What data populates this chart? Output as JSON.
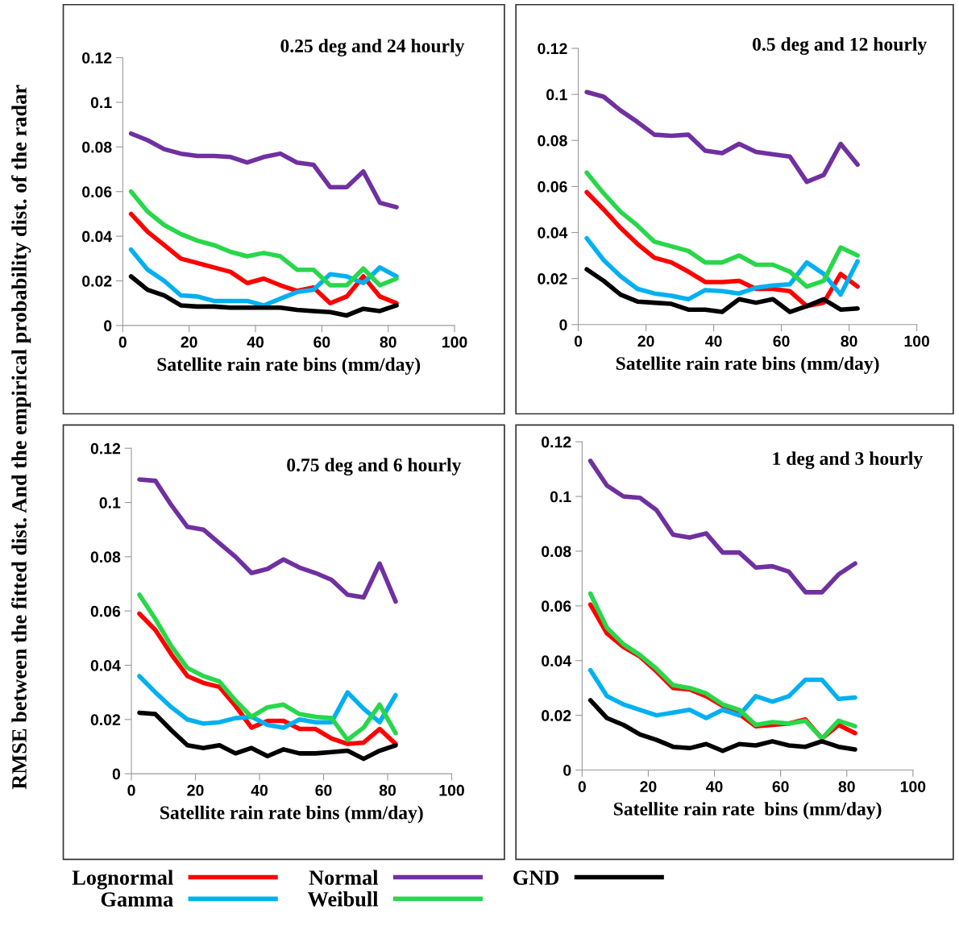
{
  "chart_data": [
    {
      "type": "line",
      "title": "0.25 deg and 24 hourly",
      "xlabel": "Satellite rain rate bins (mm/day)",
      "ylabel": "RMSE between the fitted dist. And the empirical probability dist. of the radar",
      "x": [
        2.5,
        7.5,
        12.5,
        17.5,
        22.5,
        27.5,
        32.5,
        37.5,
        42.5,
        47.5,
        52.5,
        57.5,
        62.5,
        67.5,
        72.5,
        77.5,
        82.5
      ],
      "xlim": [
        0,
        100
      ],
      "xticks": [
        0,
        20,
        40,
        60,
        80,
        100
      ],
      "ylim": [
        0,
        0.12
      ],
      "yticks": [
        0,
        0.02,
        0.04,
        0.06,
        0.08,
        0.1,
        0.12
      ],
      "grid": false,
      "legend": "bottom",
      "series": [
        {
          "name": "Lognormal",
          "color": "#ff0000",
          "values": [
            0.05,
            0.042,
            0.036,
            0.03,
            0.028,
            0.026,
            0.024,
            0.019,
            0.021,
            0.018,
            0.0155,
            0.017,
            0.01,
            0.013,
            0.022,
            0.013,
            0.01
          ]
        },
        {
          "name": "Gamma",
          "color": "#00b0f0",
          "values": [
            0.034,
            0.025,
            0.02,
            0.0135,
            0.013,
            0.011,
            0.011,
            0.011,
            0.009,
            0.012,
            0.015,
            0.016,
            0.023,
            0.022,
            0.019,
            0.026,
            0.022
          ]
        },
        {
          "name": "Normal",
          "color": "#7030a0",
          "values": [
            0.086,
            0.083,
            0.079,
            0.077,
            0.076,
            0.076,
            0.0755,
            0.073,
            0.0755,
            0.077,
            0.073,
            0.072,
            0.062,
            0.062,
            0.069,
            0.055,
            0.053
          ]
        },
        {
          "name": "Weibull",
          "color": "#28d74a",
          "values": [
            0.06,
            0.051,
            0.045,
            0.041,
            0.038,
            0.036,
            0.033,
            0.031,
            0.0325,
            0.031,
            0.025,
            0.025,
            0.018,
            0.018,
            0.0255,
            0.018,
            0.021
          ]
        },
        {
          "name": "GND",
          "color": "#000000",
          "values": [
            0.022,
            0.016,
            0.0135,
            0.009,
            0.0085,
            0.0085,
            0.008,
            0.008,
            0.008,
            0.008,
            0.007,
            0.0065,
            0.006,
            0.0045,
            0.0075,
            0.0065,
            0.009
          ]
        }
      ]
    },
    {
      "type": "line",
      "title": "0.5 deg and 12 hourly",
      "xlabel": "Satellite rain rate bins (mm/day)",
      "x": [
        2.5,
        7.5,
        12.5,
        17.5,
        22.5,
        27.5,
        32.5,
        37.5,
        42.5,
        47.5,
        52.5,
        57.5,
        62.5,
        67.5,
        72.5,
        77.5,
        82.5
      ],
      "xlim": [
        0,
        100
      ],
      "xticks": [
        0,
        20,
        40,
        60,
        80,
        100
      ],
      "ylim": [
        0,
        0.12
      ],
      "yticks": [
        0,
        0.02,
        0.04,
        0.06,
        0.08,
        0.1,
        0.12
      ],
      "grid": false,
      "series": [
        {
          "color": "#ff0000",
          "values": [
            0.0575,
            0.05,
            0.042,
            0.035,
            0.029,
            0.027,
            0.023,
            0.0185,
            0.0185,
            0.019,
            0.0155,
            0.0155,
            0.0145,
            0.008,
            0.0095,
            0.022,
            0.0165
          ]
        },
        {
          "color": "#00b0f0",
          "values": [
            0.0375,
            0.028,
            0.021,
            0.0155,
            0.0135,
            0.0125,
            0.011,
            0.015,
            0.0145,
            0.0135,
            0.016,
            0.017,
            0.0175,
            0.027,
            0.022,
            0.013,
            0.0275
          ]
        },
        {
          "color": "#7030a0",
          "values": [
            0.101,
            0.099,
            0.093,
            0.088,
            0.0825,
            0.082,
            0.0825,
            0.0755,
            0.0745,
            0.0785,
            0.075,
            0.074,
            0.073,
            0.062,
            0.065,
            0.0785,
            0.0695
          ]
        },
        {
          "color": "#28d74a",
          "values": [
            0.066,
            0.057,
            0.049,
            0.043,
            0.036,
            0.034,
            0.032,
            0.027,
            0.027,
            0.03,
            0.026,
            0.026,
            0.023,
            0.0165,
            0.019,
            0.0335,
            0.03
          ]
        },
        {
          "color": "#000000",
          "values": [
            0.024,
            0.019,
            0.013,
            0.01,
            0.0095,
            0.009,
            0.0065,
            0.0065,
            0.0055,
            0.011,
            0.0095,
            0.011,
            0.0055,
            0.008,
            0.011,
            0.0065,
            0.007
          ]
        }
      ]
    },
    {
      "type": "line",
      "title": "0.75 deg and 6 hourly",
      "xlabel": "Satellite rain rate bins (mm/day)",
      "x": [
        2.5,
        7.5,
        12.5,
        17.5,
        22.5,
        27.5,
        32.5,
        37.5,
        42.5,
        47.5,
        52.5,
        57.5,
        62.5,
        67.5,
        72.5,
        77.5,
        82.5
      ],
      "xlim": [
        0,
        100
      ],
      "xticks": [
        0,
        20,
        40,
        60,
        80,
        100
      ],
      "ylim": [
        0,
        0.12
      ],
      "yticks": [
        0,
        0.02,
        0.04,
        0.06,
        0.08,
        0.1,
        0.12
      ],
      "grid": false,
      "series": [
        {
          "color": "#ff0000",
          "values": [
            0.059,
            0.053,
            0.044,
            0.036,
            0.0335,
            0.032,
            0.025,
            0.017,
            0.0195,
            0.0195,
            0.0165,
            0.0165,
            0.013,
            0.011,
            0.0115,
            0.0165,
            0.011
          ]
        },
        {
          "color": "#00b0f0",
          "values": [
            0.036,
            0.03,
            0.0245,
            0.02,
            0.0185,
            0.019,
            0.0205,
            0.021,
            0.018,
            0.017,
            0.02,
            0.019,
            0.019,
            0.03,
            0.024,
            0.019,
            0.029
          ]
        },
        {
          "color": "#7030a0",
          "values": [
            0.1085,
            0.108,
            0.099,
            0.091,
            0.09,
            0.085,
            0.08,
            0.074,
            0.0755,
            0.079,
            0.076,
            0.074,
            0.0715,
            0.066,
            0.065,
            0.0775,
            0.0635
          ]
        },
        {
          "color": "#28d74a",
          "values": [
            0.066,
            0.057,
            0.047,
            0.039,
            0.036,
            0.034,
            0.027,
            0.021,
            0.0245,
            0.0255,
            0.022,
            0.021,
            0.0205,
            0.0125,
            0.017,
            0.0255,
            0.015
          ]
        },
        {
          "color": "#000000",
          "values": [
            0.0225,
            0.022,
            0.016,
            0.0105,
            0.0095,
            0.0105,
            0.0075,
            0.0095,
            0.0065,
            0.009,
            0.0075,
            0.0075,
            0.008,
            0.0085,
            0.0055,
            0.0085,
            0.0105
          ]
        }
      ]
    },
    {
      "type": "line",
      "title": "1 deg and 3 hourly",
      "xlabel": "Satellite rain rate  bins (mm/day)",
      "x": [
        2.5,
        7.5,
        12.5,
        17.5,
        22.5,
        27.5,
        32.5,
        37.5,
        42.5,
        47.5,
        52.5,
        57.5,
        62.5,
        67.5,
        72.5,
        77.5,
        82.5
      ],
      "xlim": [
        0,
        100
      ],
      "xticks": [
        0,
        20,
        40,
        60,
        80,
        100
      ],
      "ylim": [
        0,
        0.12
      ],
      "yticks": [
        0,
        0.02,
        0.04,
        0.06,
        0.08,
        0.1,
        0.12
      ],
      "grid": false,
      "series": [
        {
          "color": "#ff0000",
          "values": [
            0.0605,
            0.05,
            0.045,
            0.0415,
            0.036,
            0.03,
            0.0295,
            0.027,
            0.0235,
            0.0205,
            0.016,
            0.0165,
            0.017,
            0.0185,
            0.0115,
            0.0165,
            0.0135
          ]
        },
        {
          "color": "#00b0f0",
          "values": [
            0.0365,
            0.027,
            0.024,
            0.022,
            0.02,
            0.021,
            0.022,
            0.019,
            0.022,
            0.02,
            0.027,
            0.025,
            0.027,
            0.033,
            0.033,
            0.026,
            0.0265
          ]
        },
        {
          "color": "#7030a0",
          "values": [
            0.113,
            0.104,
            0.1,
            0.0995,
            0.095,
            0.086,
            0.085,
            0.0865,
            0.0795,
            0.0795,
            0.074,
            0.0745,
            0.0725,
            0.065,
            0.065,
            0.0715,
            0.0755
          ]
        },
        {
          "color": "#28d74a",
          "values": [
            0.0645,
            0.052,
            0.046,
            0.042,
            0.037,
            0.031,
            0.03,
            0.028,
            0.024,
            0.022,
            0.0165,
            0.0175,
            0.017,
            0.018,
            0.0115,
            0.018,
            0.016
          ]
        },
        {
          "color": "#000000",
          "values": [
            0.0255,
            0.019,
            0.0165,
            0.013,
            0.011,
            0.0085,
            0.008,
            0.0095,
            0.007,
            0.0095,
            0.009,
            0.0105,
            0.009,
            0.0085,
            0.0105,
            0.0085,
            0.0075
          ]
        }
      ]
    }
  ]
}
